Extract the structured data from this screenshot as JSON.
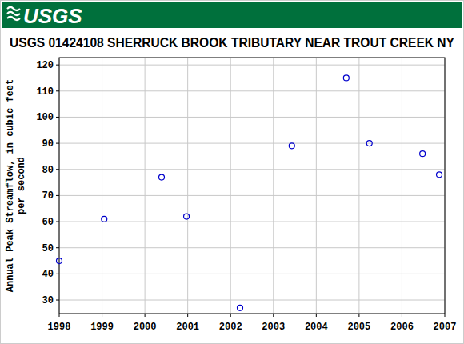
{
  "header": {
    "logo": "USGS"
  },
  "chart_data": {
    "type": "scatter",
    "title": "USGS 01424108 SHERRUCK BROOK TRIBUTARY NEAR TROUT CREEK NY",
    "y_label": [
      "Annual Peak Streamflow, in cubic feet",
      "per second"
    ],
    "x": [
      1998.0,
      1999.05,
      2000.39,
      2000.97,
      2002.22,
      2003.43,
      2004.7,
      2005.24,
      2006.48,
      2006.87
    ],
    "values": [
      45,
      61,
      77,
      62,
      27,
      89,
      115,
      90,
      86,
      78
    ],
    "color": "#0000cc",
    "marker": "open-circle",
    "xlim": [
      1998,
      2007
    ],
    "xticks": [
      1998,
      1999,
      2000,
      2001,
      2002,
      2003,
      2004,
      2005,
      2006,
      2007
    ],
    "ylim": [
      24.8,
      122.8
    ],
    "yticks": [
      30,
      40,
      50,
      60,
      70,
      80,
      90,
      100,
      110,
      120
    ],
    "grid": true
  }
}
